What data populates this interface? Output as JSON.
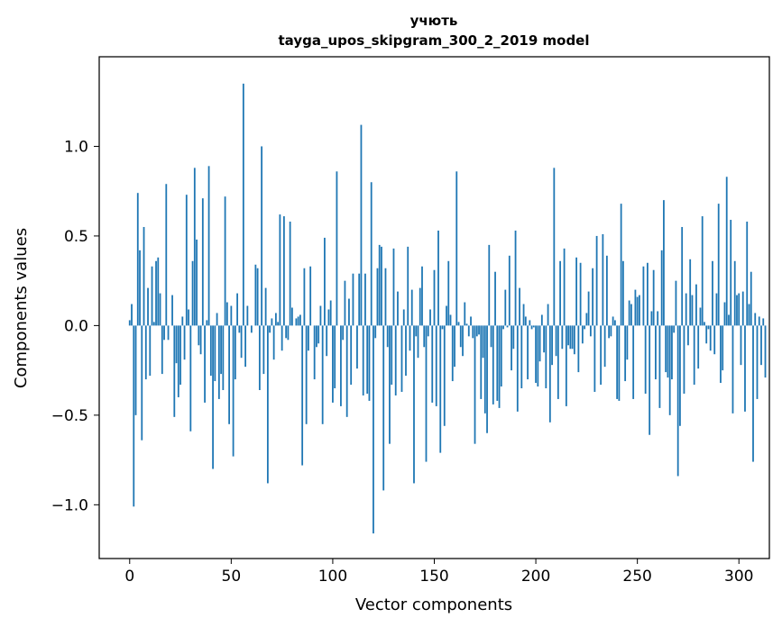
{
  "chart_data": {
    "type": "bar",
    "title": "учють",
    "subtitle": "tayga_upos_skipgram_300_2_2019 model",
    "xlabel": "Vector components",
    "ylabel": "Components values",
    "xlim": [
      -15,
      315
    ],
    "ylim": [
      -1.3,
      1.5
    ],
    "xticks": [
      0,
      50,
      100,
      150,
      200,
      250,
      300
    ],
    "xtick_labels": [
      "0",
      "50",
      "100",
      "150",
      "200",
      "250",
      "300"
    ],
    "yticks": [
      -1.0,
      -0.5,
      0.0,
      0.5,
      1.0
    ],
    "ytick_labels": [
      "−1.0",
      "−0.5",
      "0.0",
      "0.5",
      "1.0"
    ],
    "bar_color": "#1f77b4",
    "values": [
      0.03,
      0.12,
      -1.01,
      -0.5,
      0.74,
      0.42,
      -0.64,
      0.55,
      -0.3,
      0.21,
      -0.28,
      0.33,
      0.02,
      0.36,
      0.38,
      0.18,
      -0.27,
      -0.08,
      0.79,
      -0.08,
      0.0,
      0.17,
      -0.51,
      -0.21,
      -0.4,
      -0.33,
      0.05,
      -0.19,
      0.73,
      0.09,
      -0.59,
      0.36,
      0.88,
      0.48,
      -0.11,
      -0.16,
      0.71,
      -0.43,
      0.03,
      0.89,
      -0.28,
      -0.8,
      -0.31,
      0.07,
      -0.41,
      -0.27,
      -0.36,
      0.72,
      0.13,
      -0.55,
      0.11,
      -0.73,
      -0.3,
      0.18,
      -0.04,
      -0.18,
      1.35,
      -0.23,
      0.11,
      -0.0,
      -0.04,
      0.0,
      0.34,
      0.32,
      -0.36,
      1.0,
      -0.27,
      0.21,
      -0.88,
      -0.04,
      0.04,
      -0.19,
      0.07,
      0.02,
      0.62,
      -0.14,
      0.61,
      -0.07,
      -0.08,
      0.58,
      0.1,
      0.0,
      0.04,
      0.05,
      0.06,
      -0.78,
      0.32,
      -0.55,
      -0.14,
      0.33,
      0.0,
      -0.3,
      -0.12,
      -0.1,
      0.11,
      -0.55,
      0.49,
      -0.17,
      0.09,
      0.14,
      -0.43,
      -0.35,
      0.86,
      0.0,
      -0.45,
      -0.08,
      0.25,
      -0.51,
      0.15,
      -0.33,
      0.29,
      0.0,
      -0.24,
      0.29,
      1.12,
      -0.39,
      0.29,
      -0.38,
      -0.42,
      0.8,
      -1.16,
      -0.07,
      0.32,
      0.45,
      0.44,
      -0.92,
      0.32,
      -0.12,
      -0.66,
      -0.33,
      0.43,
      -0.39,
      0.19,
      0.0,
      -0.37,
      0.09,
      -0.28,
      0.44,
      -0.14,
      0.2,
      -0.88,
      -0.06,
      -0.18,
      0.21,
      0.33,
      -0.12,
      -0.76,
      -0.06,
      0.09,
      -0.43,
      0.31,
      -0.45,
      0.53,
      -0.71,
      -0.02,
      -0.56,
      0.11,
      0.36,
      0.06,
      -0.31,
      -0.23,
      0.86,
      0.02,
      -0.12,
      -0.17,
      0.13,
      0.01,
      -0.06,
      0.05,
      -0.07,
      -0.66,
      -0.06,
      -0.05,
      -0.41,
      -0.18,
      -0.49,
      -0.6,
      0.45,
      -0.12,
      -0.44,
      0.3,
      -0.42,
      -0.46,
      -0.34,
      -0.02,
      0.2,
      -0.01,
      0.39,
      -0.25,
      -0.13,
      0.53,
      -0.48,
      0.21,
      -0.35,
      0.12,
      0.05,
      -0.3,
      0.03,
      -0.02,
      -0.01,
      -0.32,
      -0.34,
      -0.2,
      0.06,
      -0.15,
      -0.35,
      0.12,
      -0.54,
      -0.22,
      0.88,
      -0.17,
      -0.41,
      0.36,
      -0.13,
      0.43,
      -0.45,
      -0.11,
      -0.13,
      -0.13,
      -0.16,
      0.38,
      -0.26,
      0.35,
      -0.1,
      -0.02,
      0.07,
      0.19,
      -0.06,
      0.32,
      -0.37,
      0.5,
      0.0,
      -0.33,
      0.51,
      -0.23,
      0.39,
      -0.07,
      -0.06,
      0.05,
      0.03,
      -0.41,
      -0.42,
      0.68,
      0.36,
      -0.31,
      -0.19,
      0.14,
      0.12,
      -0.41,
      0.2,
      0.16,
      0.17,
      0.0,
      0.33,
      -0.38,
      0.35,
      -0.61,
      0.08,
      0.31,
      -0.3,
      0.08,
      -0.46,
      0.42,
      0.7,
      -0.26,
      -0.29,
      -0.5,
      -0.3,
      -0.04,
      0.25,
      -0.84,
      -0.56,
      0.55,
      -0.38,
      0.18,
      -0.11,
      0.37,
      0.17,
      -0.33,
      0.23,
      -0.24,
      0.1,
      0.61,
      0.02,
      -0.1,
      -0.02,
      -0.14,
      0.36,
      -0.16,
      0.18,
      0.68,
      -0.32,
      -0.25,
      0.13,
      0.83,
      0.06,
      0.59,
      -0.49,
      0.36,
      0.17,
      0.18,
      -0.22,
      0.19,
      -0.48,
      0.58,
      0.12,
      0.3,
      -0.76,
      0.07,
      -0.41,
      0.05,
      -0.22,
      0.04,
      -0.29
    ]
  }
}
